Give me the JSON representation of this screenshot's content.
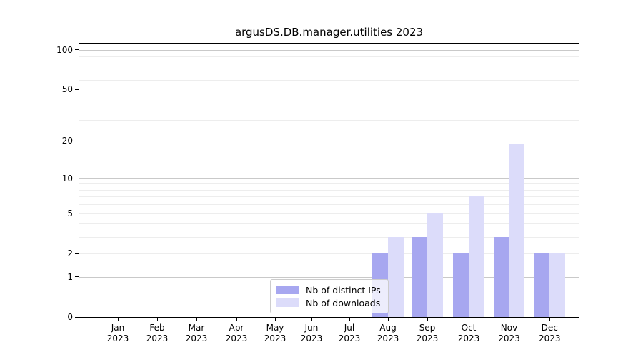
{
  "title": "argusDS.DB.manager.utilities 2023",
  "chart_data": {
    "type": "bar",
    "title": "argusDS.DB.manager.utilities 2023",
    "categories": [
      "Jan 2023",
      "Feb 2023",
      "Mar 2023",
      "Apr 2023",
      "May 2023",
      "Jun 2023",
      "Jul 2023",
      "Aug 2023",
      "Sep 2023",
      "Oct 2023",
      "Nov 2023",
      "Dec 2023"
    ],
    "months": [
      "Jan",
      "Feb",
      "Mar",
      "Apr",
      "May",
      "Jun",
      "Jul",
      "Aug",
      "Sep",
      "Oct",
      "Nov",
      "Dec"
    ],
    "year_label": "2023",
    "series": [
      {
        "name": "Nb of distinct IPs",
        "color": "#a7a7f0",
        "values": [
          0,
          0,
          0,
          0,
          0,
          0,
          0,
          2,
          3,
          2,
          3,
          2
        ]
      },
      {
        "name": "Nb of downloads",
        "color": "#dcdcfa",
        "values": [
          0,
          0,
          0,
          0,
          0,
          0,
          0,
          3,
          5,
          7,
          19,
          2
        ]
      }
    ],
    "yticks": [
      0,
      1,
      2,
      5,
      10,
      20,
      50,
      100
    ],
    "ytick_labels": [
      "0",
      "1",
      "2",
      "5",
      "10",
      "20",
      "50",
      "100"
    ],
    "y_scale": "log1p",
    "ylim": [
      0,
      111.5
    ],
    "grid": "horizontal, log minor + major",
    "grid_major_values": [
      1,
      10,
      100
    ],
    "grid_minor_values": [
      2,
      3,
      4,
      5,
      6,
      7,
      8,
      9,
      19,
      29,
      39,
      49,
      59,
      69,
      79,
      89,
      99
    ],
    "legend_position": "lower center",
    "colors": {
      "bar_dark": "#a7a7f0",
      "bar_light": "#dcdcfa",
      "grid_major": "#c9c9c9",
      "grid_minor": "#ededed",
      "legend_border": "#cccccc",
      "axis": "#000000"
    }
  }
}
